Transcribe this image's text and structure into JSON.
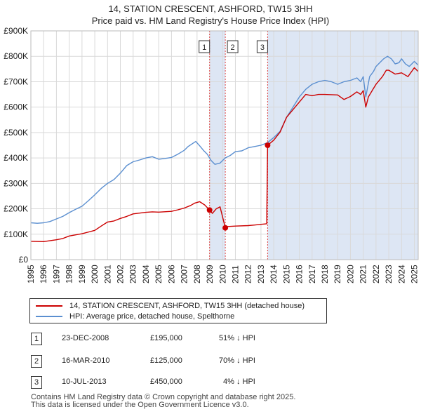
{
  "title_line1": "14, STATION CRESCENT, ASHFORD, TW15 3HH",
  "title_line2": "Price paid vs. HM Land Registry's House Price Index (HPI)",
  "chart_data": {
    "type": "line",
    "title": "14, STATION CRESCENT, ASHFORD, TW15 3HH - Price paid vs. HM Land Registry's House Price Index (HPI)",
    "xlabel": "",
    "ylabel": "",
    "xlim": [
      1995.0,
      2025.3
    ],
    "ylim": [
      0,
      900000
    ],
    "y_ticks": [
      0,
      100000,
      200000,
      300000,
      400000,
      500000,
      600000,
      700000,
      800000,
      900000
    ],
    "y_tick_labels": [
      "£0",
      "£100K",
      "£200K",
      "£300K",
      "£400K",
      "£500K",
      "£600K",
      "£700K",
      "£800K",
      "£900K"
    ],
    "x_ticks": [
      1995,
      1996,
      1997,
      1998,
      1999,
      2000,
      2001,
      2002,
      2003,
      2004,
      2005,
      2006,
      2007,
      2008,
      2009,
      2010,
      2011,
      2012,
      2013,
      2014,
      2015,
      2016,
      2017,
      2018,
      2019,
      2020,
      2021,
      2022,
      2023,
      2024,
      2025
    ],
    "x_tick_labels": [
      "1995",
      "1996",
      "1997",
      "1998",
      "1999",
      "2000",
      "2001",
      "2002",
      "2003",
      "2004",
      "2005",
      "2006",
      "2007",
      "2008",
      "2009",
      "2010",
      "2011",
      "2012",
      "2013",
      "2014",
      "2015",
      "2016",
      "2017",
      "2018",
      "2019",
      "2020",
      "2021",
      "2022",
      "2023",
      "2024",
      "2025"
    ],
    "grid": true,
    "shaded_regions": [
      [
        2008.98,
        2010.21
      ],
      [
        2013.52,
        2025.3
      ]
    ],
    "colors": {
      "property": "#cc0000",
      "hpi": "#5b8fd0",
      "shade": "#dde6f4",
      "grid": "#d9d9d9",
      "vline": "#dd4444"
    },
    "series": [
      {
        "name": "14, STATION CRESCENT, ASHFORD, TW15 3HH (detached house)",
        "color": "#cc0000",
        "x": [
          1995.0,
          1996.0,
          1997.0,
          1997.5,
          1998.0,
          1999.0,
          2000.0,
          2000.5,
          2001.0,
          2001.5,
          2002.0,
          2002.5,
          2003.0,
          2004.0,
          2004.5,
          2005.0,
          2006.0,
          2006.5,
          2007.0,
          2007.5,
          2007.8,
          2008.2,
          2008.6,
          2008.98,
          2009.2,
          2009.5,
          2009.8,
          2010.21,
          2010.3,
          2011.0,
          2012.0,
          2012.5,
          2013.0,
          2013.45,
          2013.52,
          2014.0,
          2014.5,
          2015.0,
          2016.0,
          2016.5,
          2017.0,
          2017.5,
          2018.0,
          2019.0,
          2019.5,
          2020.0,
          2020.5,
          2020.8,
          2021.0,
          2021.2,
          2021.4,
          2021.7,
          2022.0,
          2022.5,
          2022.8,
          2023.0,
          2023.5,
          2024.0,
          2024.5,
          2025.0,
          2025.3
        ],
        "y": [
          72000,
          71000,
          78000,
          83000,
          93000,
          102000,
          115000,
          132000,
          148000,
          152000,
          162000,
          170000,
          180000,
          186000,
          188000,
          187000,
          190000,
          196000,
          203000,
          213000,
          222000,
          228000,
          215000,
          195000,
          182000,
          200000,
          208000,
          125000,
          130000,
          132000,
          134000,
          136000,
          139000,
          141000,
          450000,
          470000,
          502000,
          560000,
          620000,
          650000,
          645000,
          650000,
          650000,
          648000,
          630000,
          642000,
          660000,
          650000,
          665000,
          600000,
          640000,
          665000,
          690000,
          720000,
          745000,
          745000,
          730000,
          735000,
          720000,
          755000,
          740000
        ]
      },
      {
        "name": "HPI: Average price, detached house, Spelthorne",
        "color": "#5b8fd0",
        "x": [
          1995.0,
          1995.5,
          1996.0,
          1996.5,
          1997.0,
          1997.5,
          1998.0,
          1998.5,
          1999.0,
          1999.5,
          2000.0,
          2000.5,
          2001.0,
          2001.5,
          2002.0,
          2002.5,
          2003.0,
          2003.5,
          2004.0,
          2004.5,
          2005.0,
          2005.5,
          2006.0,
          2006.5,
          2007.0,
          2007.3,
          2007.6,
          2007.9,
          2008.2,
          2008.5,
          2008.8,
          2009.1,
          2009.4,
          2009.8,
          2010.2,
          2010.6,
          2011.0,
          2011.5,
          2012.0,
          2012.5,
          2013.0,
          2013.5,
          2014.0,
          2014.5,
          2015.0,
          2015.5,
          2016.0,
          2016.5,
          2017.0,
          2017.5,
          2018.0,
          2018.5,
          2019.0,
          2019.5,
          2020.0,
          2020.5,
          2020.8,
          2021.0,
          2021.2,
          2021.5,
          2021.8,
          2022.0,
          2022.3,
          2022.6,
          2022.9,
          2023.2,
          2023.5,
          2023.8,
          2024.0,
          2024.3,
          2024.6,
          2025.0,
          2025.3
        ],
        "y": [
          145000,
          143000,
          145000,
          150000,
          160000,
          170000,
          185000,
          198000,
          210000,
          232000,
          255000,
          280000,
          300000,
          315000,
          340000,
          370000,
          385000,
          392000,
          400000,
          405000,
          395000,
          398000,
          402000,
          415000,
          430000,
          445000,
          455000,
          465000,
          448000,
          430000,
          415000,
          390000,
          375000,
          380000,
          400000,
          410000,
          425000,
          428000,
          440000,
          445000,
          450000,
          460000,
          480000,
          505000,
          560000,
          600000,
          640000,
          670000,
          690000,
          700000,
          705000,
          700000,
          690000,
          700000,
          705000,
          715000,
          700000,
          720000,
          640000,
          720000,
          740000,
          760000,
          775000,
          790000,
          800000,
          790000,
          770000,
          775000,
          790000,
          770000,
          760000,
          780000,
          765000
        ]
      }
    ],
    "sales": [
      {
        "id": "1",
        "x": 2008.98,
        "y": 195000
      },
      {
        "id": "2",
        "x": 2010.21,
        "y": 125000
      },
      {
        "id": "3",
        "x": 2013.52,
        "y": 450000
      }
    ]
  },
  "legend": {
    "property_label": "14, STATION CRESCENT, ASHFORD, TW15 3HH (detached house)",
    "hpi_label": "HPI: Average price, detached house, Spelthorne"
  },
  "transactions": [
    {
      "id": "1",
      "date": "23-DEC-2008",
      "price": "£195,000",
      "hpi_diff": "51% ↓ HPI"
    },
    {
      "id": "2",
      "date": "16-MAR-2010",
      "price": "£125,000",
      "hpi_diff": "70% ↓ HPI"
    },
    {
      "id": "3",
      "date": "10-JUL-2013",
      "price": "£450,000",
      "hpi_diff": "4% ↓ HPI"
    }
  ],
  "footer": {
    "line1": "Contains HM Land Registry data © Crown copyright and database right 2025.",
    "line2": "This data is licensed under the Open Government Licence v3.0."
  }
}
